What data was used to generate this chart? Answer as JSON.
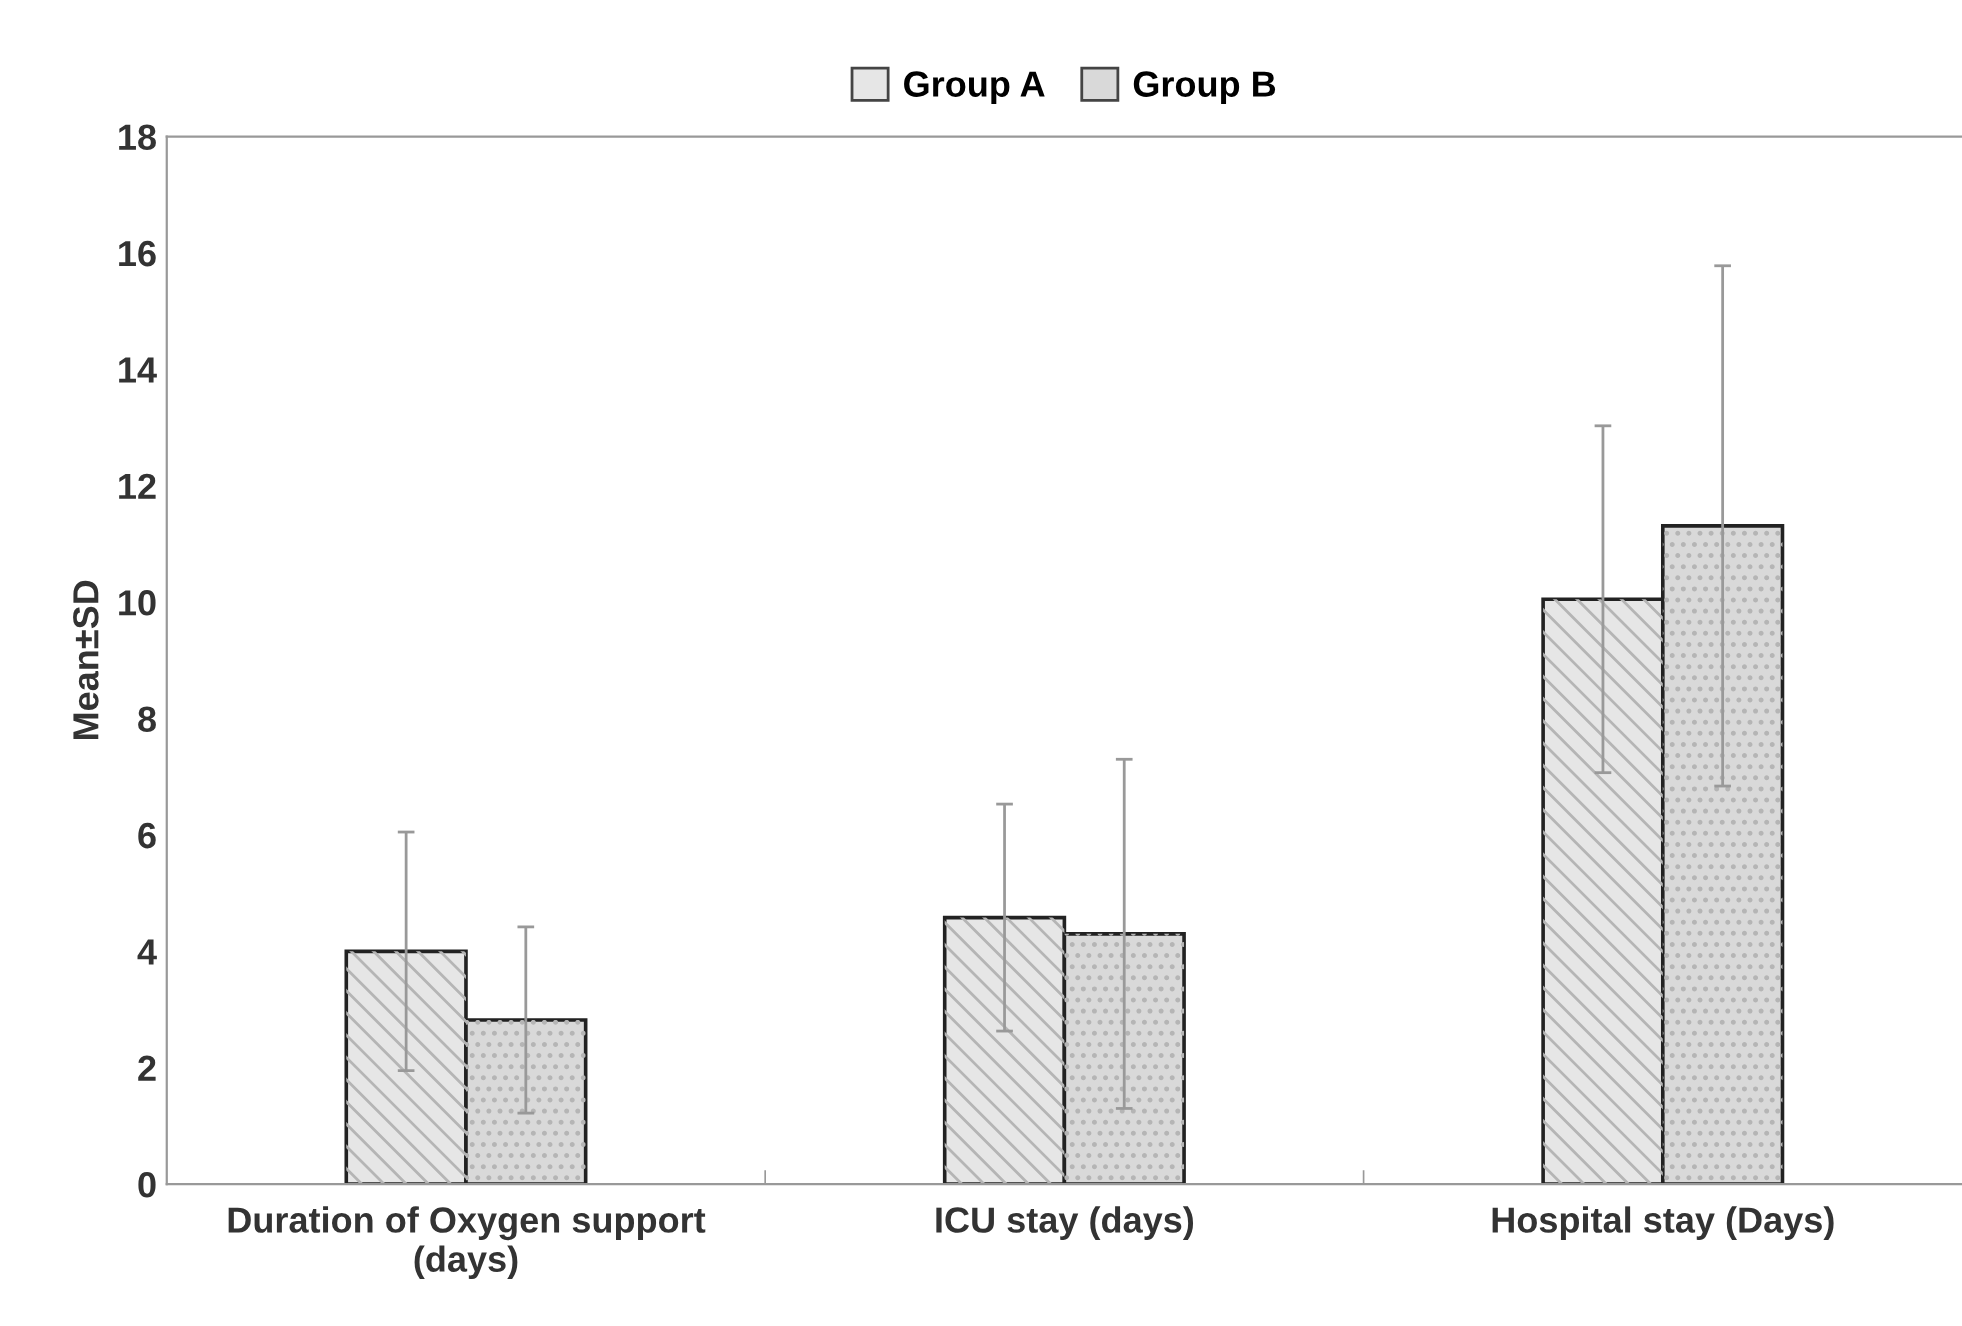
{
  "chart_data": {
    "type": "bar",
    "ylabel": "Mean±SD",
    "categories": [
      "Duration of Oxygen support\n(days)",
      "ICU stay (days)",
      "Hospital stay (Days)"
    ],
    "series": [
      {
        "name": "Group A",
        "color": "#e6e6e6",
        "values": [
          4.0,
          4.58,
          10.05
        ],
        "errors": [
          2.05,
          1.95,
          2.98
        ]
      },
      {
        "name": "Group B",
        "color": "#d9d9d9",
        "values": [
          2.82,
          4.3,
          11.31
        ],
        "errors": [
          1.6,
          3.0,
          4.47
        ]
      }
    ],
    "ylim": [
      0,
      18
    ],
    "yticks": [
      0,
      2,
      4,
      6,
      8,
      10,
      12,
      14,
      16,
      18
    ],
    "grid": false,
    "legend": "top"
  }
}
